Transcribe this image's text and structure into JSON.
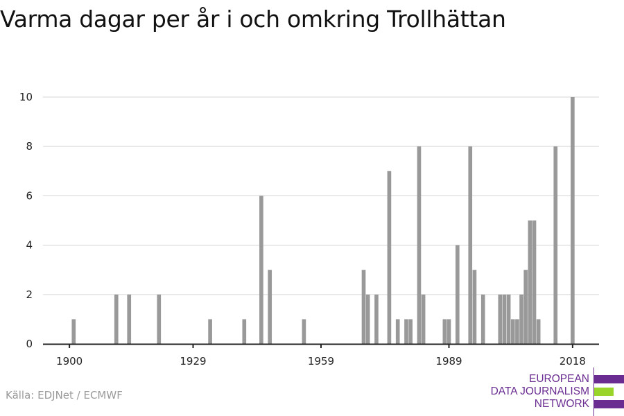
{
  "chart_data": {
    "type": "bar",
    "title": "Varma dagar per år i och omkring Trollhättan",
    "xlabel": "",
    "ylabel": "",
    "ylim": [
      0,
      10
    ],
    "xlim": [
      1893.8,
      2024.2
    ],
    "grid": true,
    "x_ticks": [
      1900,
      1929,
      1959,
      1989,
      2018
    ],
    "y_ticks": [
      0,
      2,
      4,
      6,
      8,
      10
    ],
    "bar_color": "#999999",
    "x": [
      1901,
      1911,
      1914,
      1921,
      1933,
      1941,
      1945,
      1947,
      1955,
      1969,
      1970,
      1972,
      1975,
      1977,
      1979,
      1980,
      1982,
      1983,
      1988,
      1989,
      1991,
      1994,
      1995,
      1997,
      2001,
      2002,
      2003,
      2004,
      2005,
      2006,
      2007,
      2008,
      2009,
      2010,
      2014,
      2018
    ],
    "values": [
      1,
      2,
      2,
      2,
      1,
      1,
      6,
      3,
      1,
      3,
      2,
      2,
      7,
      1,
      1,
      1,
      8,
      2,
      1,
      1,
      4,
      8,
      3,
      2,
      2,
      2,
      2,
      1,
      1,
      2,
      3,
      5,
      5,
      1,
      8,
      10
    ]
  },
  "source": "Källa: EDJNet / ECMWF",
  "logo": {
    "lines": [
      "EUROPEAN",
      "DATA JOURNALISM",
      "NETWORK"
    ],
    "purple": "#6a2c91",
    "green": "#99d42a"
  }
}
